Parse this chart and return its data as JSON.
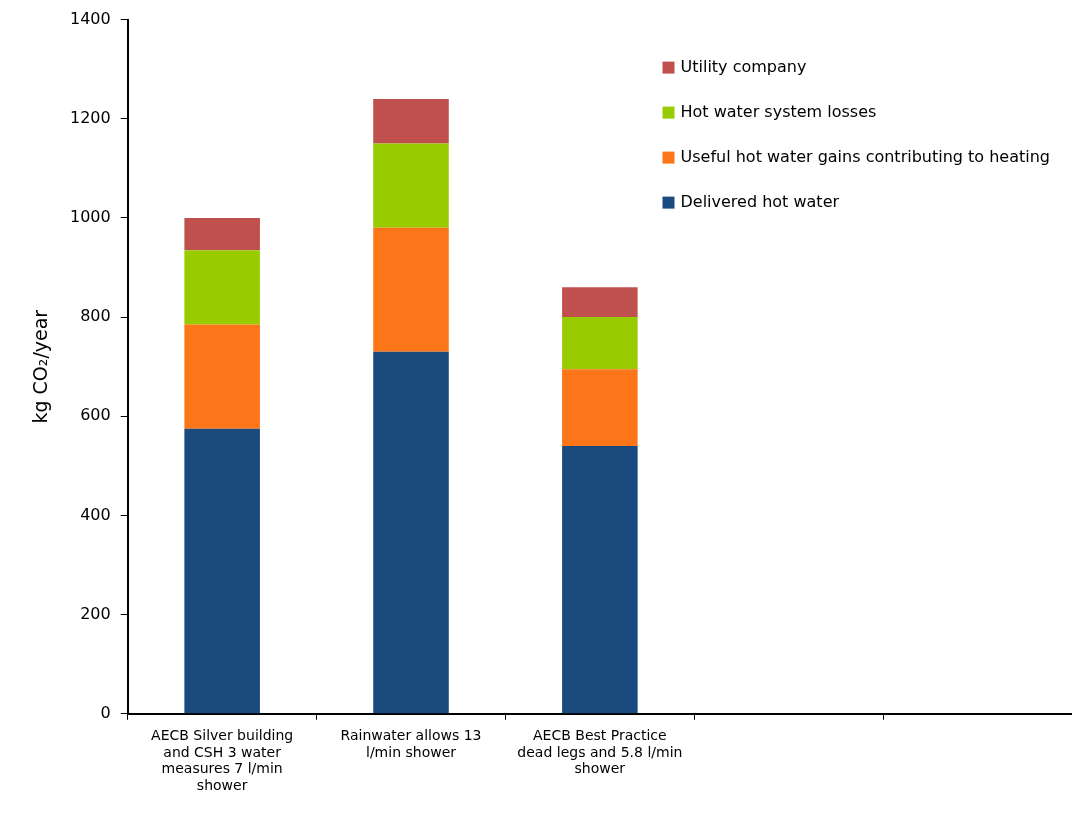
{
  "chart_data": {
    "type": "bar",
    "stacked": true,
    "ylabel": "kg CO₂/year",
    "categories": [
      "AECB Silver building and CSH 3 water measures 7 l/min shower",
      "Rainwater allows 13 l/min shower",
      "AECB Best Practice dead legs and 5.8 l/min shower",
      null,
      null
    ],
    "series": [
      {
        "name": "Delivered hot water",
        "color": "#1a4a7e",
        "values": [
          575,
          730,
          540,
          null,
          null
        ]
      },
      {
        "name": "Useful hot water gains contributing to heating",
        "color": "#fd7519",
        "values": [
          210,
          250,
          155,
          null,
          null
        ]
      },
      {
        "name": "Hot water system losses",
        "color": "#99cc00",
        "values": [
          150,
          170,
          105,
          null,
          null
        ]
      },
      {
        "name": "Utility company",
        "color": "#c0504d",
        "values": [
          65,
          90,
          60,
          null,
          null
        ]
      }
    ],
    "ylim": [
      0,
      1400
    ],
    "yticks": [
      0,
      200,
      400,
      600,
      800,
      1000,
      1200,
      1400
    ],
    "grid": false,
    "legend": "top right"
  }
}
